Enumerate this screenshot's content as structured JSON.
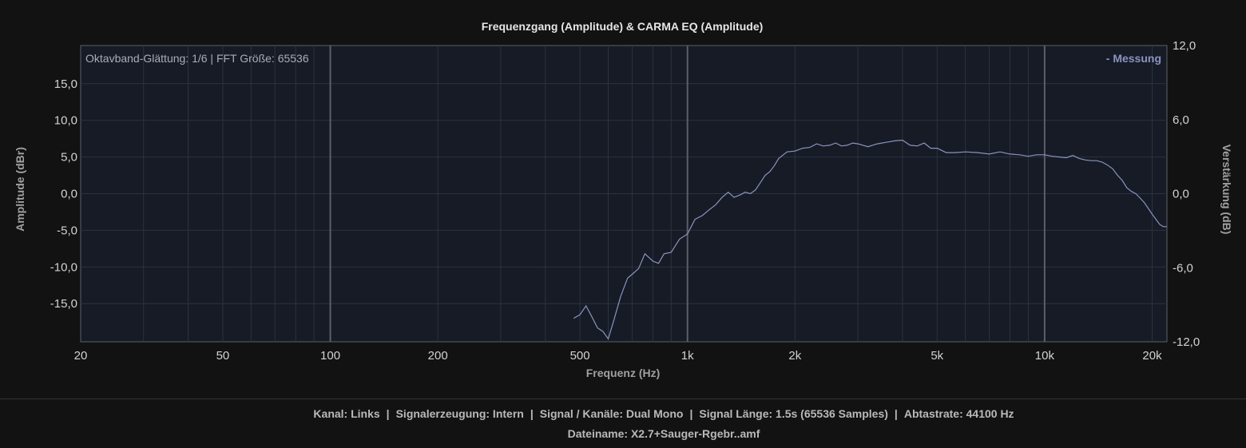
{
  "chart_data": {
    "type": "line",
    "title": "Frequenzgang (Amplitude) & CARMA EQ (Amplitude)",
    "xlabel": "Frequenz (Hz)",
    "ylabel": "Amplitude (dBr)",
    "y2label": "Verstärkung (dB)",
    "xscale": "log",
    "xlim": [
      20,
      22000
    ],
    "ylim": [
      -20.2,
      20.2
    ],
    "y2lim": [
      -12,
      12
    ],
    "x_ticks": [
      {
        "value": 20,
        "label": "20"
      },
      {
        "value": 50,
        "label": "50"
      },
      {
        "value": 100,
        "label": "100"
      },
      {
        "value": 200,
        "label": "200"
      },
      {
        "value": 500,
        "label": "500"
      },
      {
        "value": 1000,
        "label": "1k"
      },
      {
        "value": 2000,
        "label": "2k"
      },
      {
        "value": 5000,
        "label": "5k"
      },
      {
        "value": 10000,
        "label": "10k"
      },
      {
        "value": 20000,
        "label": "20k"
      }
    ],
    "y_ticks": [
      {
        "value": 15,
        "label": "15,0"
      },
      {
        "value": 10,
        "label": "10,0"
      },
      {
        "value": 5,
        "label": "5,0"
      },
      {
        "value": 0,
        "label": "0,0"
      },
      {
        "value": -5,
        "label": "-5,0"
      },
      {
        "value": -10,
        "label": "-10,0"
      },
      {
        "value": -15,
        "label": "-15,0"
      }
    ],
    "y2_ticks": [
      {
        "value": 12,
        "label": "12,0"
      },
      {
        "value": 6,
        "label": "6,0"
      },
      {
        "value": 0,
        "label": "0,0"
      },
      {
        "value": -6,
        "label": "-6,0"
      },
      {
        "value": -12,
        "label": "-12,0"
      }
    ],
    "grid": true,
    "legend_position": "top-right",
    "annotation": "Oktavband-Glättung: 1/6 | FFT Größe: 65536",
    "colors": {
      "series": "#8b93bf",
      "plot_bg": "#161b26",
      "grid": "#2d3240",
      "major_grid": "#5a5f6a"
    },
    "series": [
      {
        "name": "- Messung",
        "x": [
          480,
          500,
          520,
          540,
          560,
          580,
          600,
          620,
          650,
          680,
          700,
          730,
          760,
          800,
          830,
          860,
          900,
          950,
          1000,
          1050,
          1100,
          1150,
          1200,
          1250,
          1300,
          1350,
          1400,
          1450,
          1500,
          1550,
          1600,
          1650,
          1700,
          1750,
          1800,
          1900,
          2000,
          2100,
          2200,
          2300,
          2400,
          2500,
          2600,
          2700,
          2800,
          2900,
          3000,
          3200,
          3400,
          3600,
          3800,
          4000,
          4200,
          4400,
          4600,
          4800,
          5000,
          5300,
          5600,
          6000,
          6500,
          7000,
          7500,
          8000,
          8500,
          9000,
          9500,
          10000,
          10500,
          11000,
          11500,
          12000,
          12500,
          13000,
          13500,
          14000,
          14500,
          15000,
          15500,
          16000,
          16500,
          17000,
          17500,
          18000,
          18500,
          19000,
          19500,
          20000,
          20500,
          21000,
          21500,
          22000
        ],
        "values": [
          -17.0,
          -16.5,
          -15.3,
          -16.8,
          -18.3,
          -18.8,
          -19.8,
          -17.5,
          -14.0,
          -11.5,
          -11.0,
          -10.2,
          -8.2,
          -9.2,
          -9.5,
          -8.2,
          -8.0,
          -6.2,
          -5.5,
          -3.5,
          -3.0,
          -2.2,
          -1.5,
          -0.5,
          0.2,
          -0.5,
          -0.2,
          0.2,
          0.0,
          0.5,
          1.5,
          2.5,
          3.0,
          3.8,
          4.8,
          5.7,
          5.8,
          6.2,
          6.3,
          6.8,
          6.5,
          6.6,
          6.9,
          6.5,
          6.6,
          6.9,
          6.8,
          6.4,
          6.8,
          7.0,
          7.2,
          7.3,
          6.6,
          6.5,
          6.9,
          6.2,
          6.2,
          5.6,
          5.6,
          5.7,
          5.6,
          5.4,
          5.7,
          5.4,
          5.3,
          5.1,
          5.3,
          5.3,
          5.1,
          5.0,
          4.9,
          5.2,
          4.8,
          4.6,
          4.5,
          4.5,
          4.3,
          3.9,
          3.4,
          2.5,
          1.8,
          0.8,
          0.3,
          0.0,
          -0.6,
          -1.2,
          -2.0,
          -2.8,
          -3.5,
          -4.2,
          -4.5,
          -4.5
        ]
      }
    ]
  },
  "footer": {
    "kanal": "Kanal: Links",
    "signalerzeugung": "Signalerzeugung: Intern",
    "signal_kanaele": "Signal / Kanäle: Dual Mono",
    "signal_laenge": "Signal Länge: 1.5s (65536 Samples)",
    "abtastrate": "Abtastrate: 44100 Hz",
    "dateiname": "Dateiname: X2.7+Sauger-Rgebr..amf",
    "separator": "|"
  }
}
